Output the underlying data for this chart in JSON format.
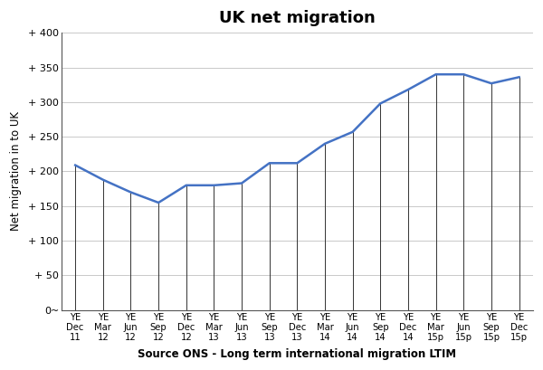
{
  "title": "UK net migration",
  "xlabel": "Source ONS - Long term international migration LTIM",
  "ylabel": "Net migration in to UK",
  "x_labels_line1": [
    "YE",
    "YE",
    "YE",
    "YE",
    "YE",
    "YE",
    "YE",
    "YE",
    "YE",
    "YE",
    "YE",
    "YE",
    "YE",
    "YE",
    "YE",
    "YE",
    "YE"
  ],
  "x_labels_line2": [
    "Dec",
    "Mar",
    "Jun",
    "Sep",
    "Dec",
    "Mar",
    "Jun",
    "Sep",
    "Dec",
    "Mar",
    "Jun",
    "Sep",
    "Dec",
    "Mar",
    "Jun",
    "Sep",
    "Dec"
  ],
  "x_labels_line3": [
    "11",
    "12",
    "12",
    "12",
    "12",
    "13",
    "13",
    "13",
    "13",
    "14",
    "14",
    "14",
    "14",
    "15p",
    "15p",
    "15p",
    "15p"
  ],
  "values": [
    209,
    188,
    170,
    155,
    180,
    180,
    183,
    212,
    212,
    240,
    257,
    298,
    318,
    340,
    340,
    327,
    336
  ],
  "line_color": "#4472c4",
  "ylim": [
    0,
    400
  ],
  "yticks": [
    0,
    50,
    100,
    150,
    200,
    250,
    300,
    350,
    400
  ],
  "ytick_labels": [
    "0~",
    "+ 50",
    "+ 100",
    "+ 150",
    "+ 200",
    "+ 250",
    "+ 300",
    "+ 350",
    "+ 400"
  ],
  "bg_color": "#ffffff",
  "grid_color": "#c0c0c0",
  "vline_color": "#333333"
}
